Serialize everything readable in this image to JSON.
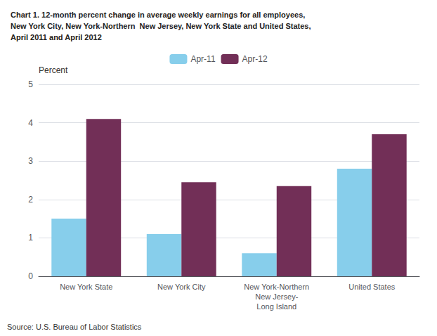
{
  "chart_data": {
    "type": "bar",
    "title": "Chart 1. 12-month percent change in average weekly earnings for all employees,\nNew York City, New York-Northern  New Jersey, New York State and United States,\nApril 2011 and April 2012",
    "ylabel": "Percent",
    "categories": [
      "New York State",
      "New York City",
      "New York-Northern\nNew Jersey-\nLong Island",
      "United States"
    ],
    "series": [
      {
        "name": "Apr-11",
        "color": "#87CEEB",
        "values": [
          1.5,
          1.1,
          0.6,
          2.8
        ]
      },
      {
        "name": "Apr-12",
        "color": "#722F57",
        "values": [
          4.1,
          2.45,
          2.35,
          3.7
        ]
      }
    ],
    "ylim": [
      0,
      5
    ],
    "yticks": [
      0,
      1,
      2,
      3,
      4,
      5
    ],
    "grid": true,
    "legend": "top",
    "annotations": [
      "Source: U.S. Bureau of Labor Statistics"
    ]
  }
}
